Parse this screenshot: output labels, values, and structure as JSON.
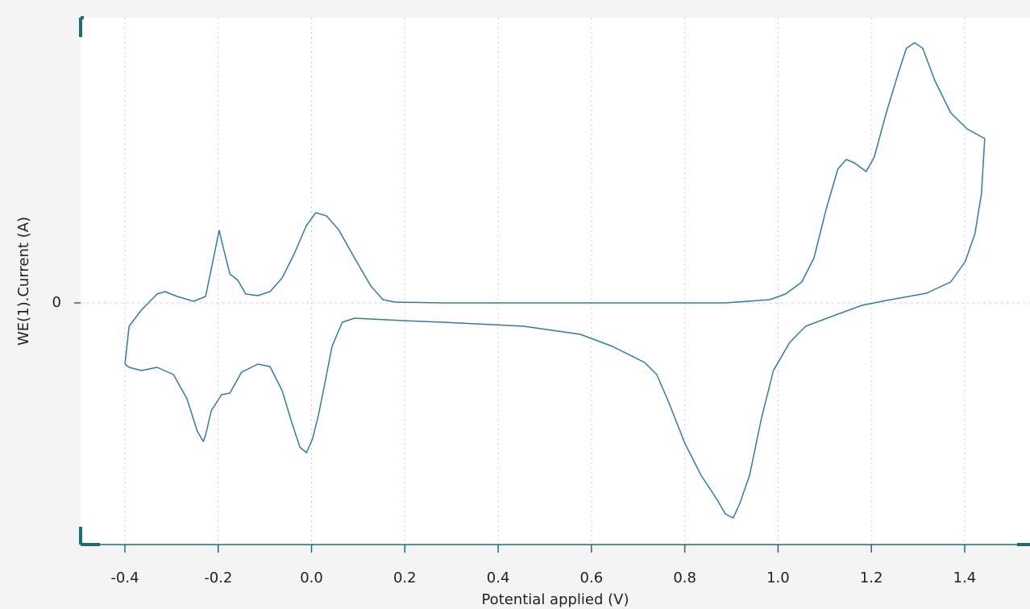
{
  "chart_data": {
    "type": "line",
    "x_label": "Potential applied (V)",
    "y_label": "WE(1).Current (A)",
    "x": [
      -0.4,
      -0.391,
      -0.365,
      -0.331,
      -0.314,
      -0.288,
      -0.253,
      -0.227,
      -0.21,
      -0.198,
      -0.188,
      -0.175,
      -0.158,
      -0.141,
      -0.115,
      -0.089,
      -0.063,
      -0.037,
      -0.011,
      0.009,
      0.032,
      0.058,
      0.092,
      0.127,
      0.153,
      0.179,
      0.282,
      0.541,
      0.887,
      0.982,
      1.016,
      1.051,
      1.077,
      1.103,
      1.128,
      1.146,
      1.163,
      1.189,
      1.206,
      1.232,
      1.258,
      1.275,
      1.293,
      1.31,
      1.336,
      1.37,
      1.405,
      1.443,
      1.436,
      1.422,
      1.401,
      1.37,
      1.318,
      1.232,
      1.18,
      1.128,
      1.059,
      1.025,
      0.99,
      0.964,
      0.939,
      0.918,
      0.904,
      0.887,
      0.869,
      0.835,
      0.8,
      0.766,
      0.74,
      0.714,
      0.645,
      0.576,
      0.455,
      0.282,
      0.196,
      0.092,
      0.066,
      0.044,
      0.027,
      0.015,
      0.002,
      -0.011,
      -0.025,
      -0.042,
      -0.063,
      -0.089,
      -0.115,
      -0.15,
      -0.175,
      -0.193,
      -0.215,
      -0.227,
      -0.232,
      -0.245,
      -0.267,
      -0.296,
      -0.331,
      -0.365,
      -0.391,
      -0.4
    ],
    "series": [
      {
        "color": "#2f7ca8",
        "values": [
          -0.76,
          -0.29,
          -0.09,
          0.11,
          0.14,
          0.08,
          0.02,
          0.08,
          0.56,
          0.9,
          0.66,
          0.36,
          0.28,
          0.11,
          0.09,
          0.14,
          0.31,
          0.61,
          0.96,
          1.12,
          1.08,
          0.91,
          0.56,
          0.21,
          0.04,
          0.01,
          0,
          0,
          0,
          0.04,
          0.11,
          0.26,
          0.56,
          1.16,
          1.66,
          1.78,
          1.74,
          1.63,
          1.81,
          2.36,
          2.86,
          3.16,
          3.23,
          3.16,
          2.76,
          2.36,
          2.16,
          2.04,
          1.36,
          0.86,
          0.51,
          0.26,
          0.12,
          0.03,
          -0.03,
          -0.14,
          -0.29,
          -0.49,
          -0.84,
          -1.44,
          -2.14,
          -2.49,
          -2.67,
          -2.62,
          -2.44,
          -2.14,
          -1.74,
          -1.24,
          -0.89,
          -0.74,
          -0.54,
          -0.39,
          -0.29,
          -0.24,
          -0.22,
          -0.19,
          -0.24,
          -0.54,
          -1.04,
          -1.39,
          -1.69,
          -1.86,
          -1.79,
          -1.49,
          -1.09,
          -0.79,
          -0.76,
          -0.86,
          -1.12,
          -1.14,
          -1.34,
          -1.64,
          -1.72,
          -1.59,
          -1.19,
          -0.89,
          -0.8,
          -0.84,
          -0.8,
          -0.76
        ]
      }
    ],
    "xlim": [
      -0.495,
      1.54
    ],
    "ylim": [
      -3.0,
      3.54
    ],
    "xticks": [
      -0.4,
      -0.2,
      {
        "value": 0,
        "label": "0.0"
      },
      0.2,
      0.4,
      0.6,
      0.8,
      {
        "value": 1,
        "label": "1.0"
      },
      1.2,
      1.4
    ],
    "yticks": [
      0
    ],
    "grid": true
  }
}
